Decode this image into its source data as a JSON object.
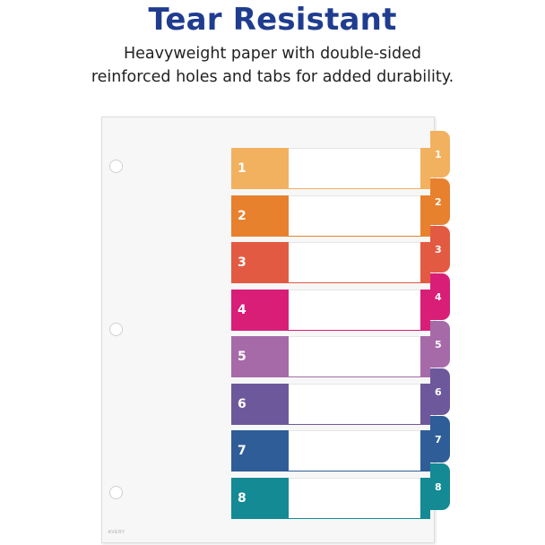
{
  "headline": "Tear Resistant",
  "subtext": [
    "Heavyweight paper with double-sided",
    "reinforced holes and tabs for added durability."
  ],
  "brand_mark": "AVERY",
  "dividers": [
    {
      "label": "1",
      "color": "#f2b15f"
    },
    {
      "label": "2",
      "color": "#e8812e"
    },
    {
      "label": "3",
      "color": "#e35a42"
    },
    {
      "label": "4",
      "color": "#d91e78"
    },
    {
      "label": "5",
      "color": "#a66aa9"
    },
    {
      "label": "6",
      "color": "#6d589c"
    },
    {
      "label": "7",
      "color": "#2f5d98"
    },
    {
      "label": "8",
      "color": "#138a94"
    }
  ]
}
